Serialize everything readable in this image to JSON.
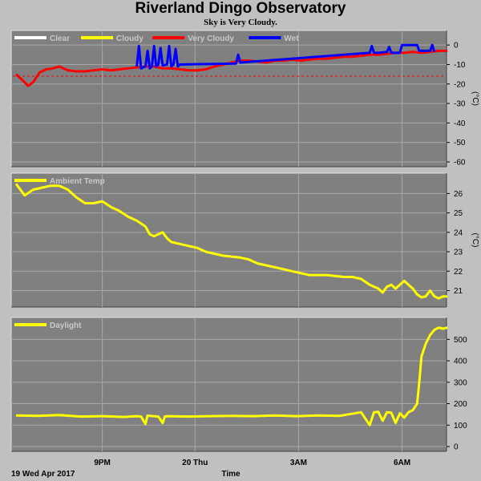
{
  "title": "Riverland Dingo Observatory",
  "subtitle": "Sky is Very Cloudy.",
  "footer": {
    "date_label": "19 Wed Apr 2017",
    "x_axis_title": "Time"
  },
  "chart_data": [
    {
      "type": "line",
      "name": "sky",
      "yunit": "(°C)",
      "ylim": [
        -60,
        5
      ],
      "yticks": [
        0,
        -10,
        -20,
        -30,
        -40,
        -50,
        -60
      ],
      "xlim": [
        0,
        1
      ],
      "grid": true,
      "legend_placement": "top-left",
      "threshold": -16,
      "legend": [
        {
          "label": "Clear",
          "color": "#ffffff"
        },
        {
          "label": "Cloudy",
          "color": "#ffff00"
        },
        {
          "label": "Very Cloudy",
          "color": "#ff0000"
        },
        {
          "label": "Wet",
          "color": "#0000ff"
        }
      ],
      "series": [
        {
          "name": "Very Cloudy",
          "color": "#ff0000",
          "x": [
            0.0,
            0.015,
            0.028,
            0.04,
            0.055,
            0.07,
            0.085,
            0.1,
            0.12,
            0.14,
            0.16,
            0.18,
            0.2,
            0.22,
            0.24,
            0.26,
            0.28,
            0.3,
            0.32,
            0.34,
            0.36,
            0.38,
            0.4,
            0.42,
            0.44,
            0.46,
            0.48,
            0.5,
            0.52,
            0.54,
            0.56,
            0.58,
            0.6,
            0.62,
            0.64,
            0.66,
            0.68,
            0.7,
            0.72,
            0.74,
            0.76,
            0.78,
            0.8,
            0.82,
            0.84,
            0.86,
            0.88,
            0.9,
            0.92,
            0.94,
            0.96,
            0.98,
            1.0
          ],
          "y": [
            -15,
            -18,
            -21,
            -19,
            -14,
            -12.5,
            -12,
            -11,
            -13,
            -13.5,
            -13.5,
            -13,
            -12.5,
            -13,
            -12.5,
            -12,
            -11.5,
            -11,
            -11,
            -12,
            -12,
            -12.5,
            -13,
            -13,
            -12.5,
            -11,
            -10,
            -9,
            -8,
            -8,
            -8.5,
            -9,
            -8,
            -8,
            -7.5,
            -8,
            -7.5,
            -7,
            -7,
            -6.5,
            -6,
            -6,
            -5.5,
            -5,
            -5,
            -4.5,
            -4,
            -4,
            -3.5,
            -4,
            -3.5,
            -3,
            -3
          ]
        },
        {
          "name": "Wet",
          "color": "#0000ff",
          "x": [
            0.28,
            0.285,
            0.29,
            0.3,
            0.305,
            0.31,
            0.315,
            0.32,
            0.325,
            0.33,
            0.335,
            0.34,
            0.35,
            0.355,
            0.36,
            0.365,
            0.37,
            0.375,
            0.38,
            0.51,
            0.515,
            0.52,
            0.82,
            0.825,
            0.83,
            0.84,
            0.86,
            0.865,
            0.87,
            0.89,
            0.895,
            0.9,
            0.91,
            0.93,
            0.935,
            0.94,
            0.96,
            0.965,
            0.97
          ],
          "y": [
            -11,
            -0.5,
            -12,
            -11,
            -3,
            -12,
            -11,
            -0.5,
            -11,
            -10,
            -1.5,
            -10.5,
            -10,
            -0.5,
            -11,
            -10,
            -2,
            -11,
            -10,
            -9.5,
            -5,
            -9,
            -4,
            -0.5,
            -4,
            -4,
            -3.5,
            -1,
            -4,
            -4,
            0,
            0,
            0,
            0,
            -3,
            -3,
            -3,
            0,
            -3.5
          ]
        }
      ]
    },
    {
      "type": "line",
      "name": "ambient",
      "yunit": "(°C)",
      "ylim": [
        20.4,
        26.8
      ],
      "yticks": [
        26,
        25,
        24,
        23,
        22,
        21
      ],
      "xlim": [
        0,
        1
      ],
      "grid": true,
      "legend_placement": "top-left",
      "legend": [
        {
          "label": "Ambient Temp",
          "color": "#ffff00"
        }
      ],
      "series": [
        {
          "name": "Ambient Temp",
          "color": "#ffff00",
          "x": [
            0.0,
            0.02,
            0.04,
            0.06,
            0.08,
            0.1,
            0.12,
            0.14,
            0.16,
            0.18,
            0.2,
            0.22,
            0.24,
            0.26,
            0.28,
            0.3,
            0.31,
            0.32,
            0.33,
            0.34,
            0.35,
            0.36,
            0.38,
            0.4,
            0.42,
            0.44,
            0.46,
            0.48,
            0.5,
            0.52,
            0.54,
            0.56,
            0.58,
            0.6,
            0.62,
            0.64,
            0.66,
            0.68,
            0.7,
            0.72,
            0.74,
            0.76,
            0.78,
            0.8,
            0.82,
            0.84,
            0.85,
            0.86,
            0.87,
            0.88,
            0.89,
            0.9,
            0.91,
            0.92,
            0.93,
            0.94,
            0.95,
            0.96,
            0.97,
            0.98,
            0.99,
            1.0
          ],
          "y": [
            26.5,
            25.9,
            26.2,
            26.3,
            26.4,
            26.4,
            26.2,
            25.8,
            25.5,
            25.5,
            25.6,
            25.3,
            25.1,
            24.8,
            24.6,
            24.3,
            23.9,
            23.8,
            23.9,
            24.0,
            23.7,
            23.5,
            23.4,
            23.3,
            23.2,
            23.0,
            22.9,
            22.8,
            22.75,
            22.7,
            22.6,
            22.4,
            22.3,
            22.2,
            22.1,
            22.0,
            21.9,
            21.8,
            21.8,
            21.8,
            21.75,
            21.7,
            21.7,
            21.6,
            21.3,
            21.1,
            20.9,
            21.2,
            21.3,
            21.1,
            21.3,
            21.5,
            21.3,
            21.1,
            20.8,
            20.65,
            20.7,
            21.0,
            20.7,
            20.6,
            20.7,
            20.7
          ]
        }
      ]
    },
    {
      "type": "line",
      "name": "daylight",
      "ylim": [
        0,
        580
      ],
      "yticks": [
        500,
        400,
        300,
        200,
        100,
        0
      ],
      "xlim": [
        0,
        1
      ],
      "grid": true,
      "legend_placement": "top-left",
      "legend": [
        {
          "label": "Daylight",
          "color": "#ffff00"
        }
      ],
      "series": [
        {
          "name": "Daylight",
          "color": "#ffff00",
          "x": [
            0.0,
            0.05,
            0.1,
            0.15,
            0.2,
            0.25,
            0.28,
            0.29,
            0.3,
            0.305,
            0.31,
            0.33,
            0.34,
            0.345,
            0.35,
            0.4,
            0.45,
            0.5,
            0.55,
            0.6,
            0.65,
            0.7,
            0.75,
            0.8,
            0.82,
            0.83,
            0.84,
            0.85,
            0.86,
            0.87,
            0.88,
            0.89,
            0.9,
            0.91,
            0.92,
            0.93,
            0.935,
            0.94,
            0.95,
            0.96,
            0.97,
            0.98,
            0.99,
            1.0
          ],
          "y": [
            145,
            143,
            147,
            140,
            142,
            138,
            142,
            140,
            105,
            145,
            143,
            140,
            110,
            140,
            142,
            140,
            142,
            143,
            142,
            145,
            142,
            145,
            143,
            160,
            100,
            160,
            162,
            120,
            160,
            158,
            110,
            155,
            135,
            160,
            170,
            200,
            300,
            420,
            480,
            520,
            545,
            555,
            550,
            555
          ]
        }
      ]
    }
  ],
  "x_ticks": [
    {
      "label": "9PM",
      "pos": 0.2,
      "bold": true
    },
    {
      "label": "20 Thu",
      "pos": 0.415,
      "bold": true
    },
    {
      "label": "3AM",
      "pos": 0.655,
      "bold": true
    },
    {
      "label": "6AM",
      "pos": 0.895,
      "bold": true
    }
  ]
}
